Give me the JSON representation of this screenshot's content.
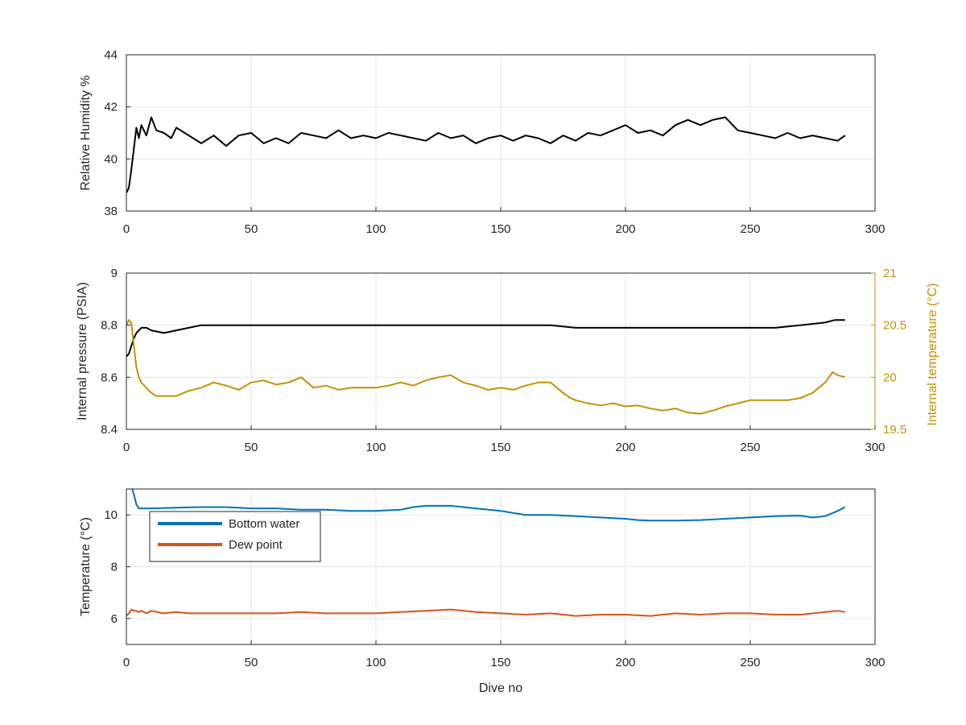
{
  "chart_data": [
    {
      "type": "line",
      "title": "",
      "xlabel": "",
      "ylabel": "Relative Humidity %",
      "xlim": [
        0,
        300
      ],
      "ylim": [
        38,
        44
      ],
      "xticks": [
        0,
        50,
        100,
        150,
        200,
        250,
        300
      ],
      "yticks": [
        38,
        40,
        42,
        44
      ],
      "grid": true,
      "series": [
        {
          "color": "#000000",
          "x": [
            0,
            1,
            2,
            3,
            4,
            5,
            6,
            8,
            10,
            12,
            15,
            18,
            20,
            25,
            30,
            35,
            40,
            45,
            50,
            55,
            60,
            65,
            70,
            75,
            80,
            85,
            90,
            95,
            100,
            105,
            110,
            115,
            120,
            125,
            130,
            135,
            140,
            145,
            150,
            155,
            160,
            165,
            170,
            175,
            180,
            185,
            190,
            195,
            200,
            205,
            210,
            215,
            220,
            225,
            230,
            235,
            240,
            245,
            250,
            255,
            260,
            265,
            270,
            275,
            280,
            285,
            288
          ],
          "values": [
            38.7,
            38.9,
            39.6,
            40.4,
            41.2,
            40.8,
            41.3,
            40.9,
            41.6,
            41.1,
            41.0,
            40.8,
            41.2,
            40.9,
            40.6,
            40.9,
            40.5,
            40.9,
            41.0,
            40.6,
            40.8,
            40.6,
            41.0,
            40.9,
            40.8,
            41.1,
            40.8,
            40.9,
            40.8,
            41.0,
            40.9,
            40.8,
            40.7,
            41.0,
            40.8,
            40.9,
            40.6,
            40.8,
            40.9,
            40.7,
            40.9,
            40.8,
            40.6,
            40.9,
            40.7,
            41.0,
            40.9,
            41.1,
            41.3,
            41.0,
            41.1,
            40.9,
            41.3,
            41.5,
            41.3,
            41.5,
            41.6,
            41.1,
            41.0,
            40.9,
            40.8,
            41.0,
            40.8,
            40.9,
            40.8,
            40.7,
            40.9
          ]
        }
      ]
    },
    {
      "type": "line",
      "title": "",
      "xlabel": "",
      "ylabel": "Internal pressure (PSIA)",
      "ylabel_right": "Internal temperature (°C)",
      "xlim": [
        0,
        300
      ],
      "ylim": [
        8.4,
        9.0
      ],
      "ylim_right": [
        19.5,
        21.0
      ],
      "xticks": [
        0,
        50,
        100,
        150,
        200,
        250,
        300
      ],
      "yticks": [
        8.4,
        8.6,
        8.8,
        9.0
      ],
      "ytick_labels": [
        "8.4",
        "8.6",
        "8.8",
        "9"
      ],
      "yticks_right": [
        19.5,
        20,
        20.5,
        21
      ],
      "grid": true,
      "series": [
        {
          "axis": "left",
          "color": "#000000",
          "x": [
            0,
            1,
            2,
            3,
            4,
            5,
            6,
            8,
            10,
            15,
            20,
            25,
            30,
            40,
            50,
            60,
            70,
            80,
            90,
            100,
            110,
            120,
            130,
            140,
            150,
            160,
            170,
            180,
            190,
            200,
            210,
            220,
            230,
            240,
            250,
            260,
            270,
            280,
            284,
            288
          ],
          "values": [
            8.68,
            8.69,
            8.72,
            8.75,
            8.77,
            8.78,
            8.79,
            8.79,
            8.78,
            8.77,
            8.78,
            8.79,
            8.8,
            8.8,
            8.8,
            8.8,
            8.8,
            8.8,
            8.8,
            8.8,
            8.8,
            8.8,
            8.8,
            8.8,
            8.8,
            8.8,
            8.8,
            8.79,
            8.79,
            8.79,
            8.79,
            8.79,
            8.79,
            8.79,
            8.79,
            8.79,
            8.8,
            8.81,
            8.82,
            8.82
          ]
        },
        {
          "axis": "right",
          "color": "#C59104",
          "x": [
            0,
            1,
            2,
            3,
            4,
            5,
            6,
            8,
            10,
            12,
            15,
            20,
            25,
            30,
            35,
            40,
            45,
            50,
            55,
            60,
            65,
            70,
            75,
            80,
            85,
            90,
            95,
            100,
            105,
            110,
            115,
            120,
            125,
            130,
            135,
            140,
            145,
            150,
            155,
            160,
            165,
            170,
            175,
            178,
            180,
            185,
            190,
            195,
            200,
            205,
            210,
            215,
            220,
            225,
            230,
            235,
            240,
            245,
            250,
            255,
            260,
            265,
            270,
            275,
            280,
            283,
            285,
            288
          ],
          "values": [
            20.5,
            20.55,
            20.52,
            20.3,
            20.1,
            20.0,
            19.95,
            19.9,
            19.85,
            19.82,
            19.82,
            19.82,
            19.87,
            19.9,
            19.95,
            19.92,
            19.88,
            19.95,
            19.97,
            19.93,
            19.95,
            20.0,
            19.9,
            19.92,
            19.88,
            19.9,
            19.9,
            19.9,
            19.92,
            19.95,
            19.92,
            19.97,
            20.0,
            20.02,
            19.95,
            19.92,
            19.88,
            19.9,
            19.88,
            19.92,
            19.95,
            19.95,
            19.85,
            19.8,
            19.78,
            19.75,
            19.73,
            19.75,
            19.72,
            19.73,
            19.7,
            19.68,
            19.7,
            19.66,
            19.65,
            19.68,
            19.72,
            19.75,
            19.78,
            19.78,
            19.78,
            19.78,
            19.8,
            19.85,
            19.95,
            20.05,
            20.02,
            20.0
          ]
        }
      ]
    },
    {
      "type": "line",
      "title": "",
      "xlabel": "Dive no",
      "ylabel": "Temperature (°C)",
      "xlim": [
        0,
        300
      ],
      "ylim": [
        5,
        11
      ],
      "xticks": [
        0,
        50,
        100,
        150,
        200,
        250,
        300
      ],
      "yticks": [
        6,
        8,
        10
      ],
      "grid": true,
      "legend_position": "top-left",
      "series": [
        {
          "name": "Bottom water",
          "color": "#0072BD",
          "x": [
            0,
            1,
            2,
            3,
            4,
            5,
            10,
            20,
            30,
            40,
            50,
            60,
            70,
            80,
            90,
            100,
            110,
            115,
            120,
            125,
            130,
            135,
            140,
            150,
            160,
            170,
            180,
            190,
            200,
            205,
            210,
            215,
            220,
            230,
            240,
            250,
            260,
            270,
            275,
            280,
            285,
            288
          ],
          "values": [
            11.5,
            11.3,
            11.1,
            10.8,
            10.4,
            10.25,
            10.25,
            10.28,
            10.3,
            10.3,
            10.25,
            10.25,
            10.2,
            10.2,
            10.15,
            10.15,
            10.2,
            10.3,
            10.35,
            10.35,
            10.35,
            10.3,
            10.25,
            10.15,
            10.0,
            10.0,
            9.95,
            9.9,
            9.85,
            9.8,
            9.78,
            9.78,
            9.78,
            9.8,
            9.85,
            9.9,
            9.95,
            9.97,
            9.9,
            9.95,
            10.15,
            10.3
          ]
        },
        {
          "name": "Dew point",
          "color": "#D95319",
          "x": [
            0,
            1,
            2,
            3,
            4,
            5,
            6,
            8,
            10,
            15,
            20,
            25,
            30,
            40,
            50,
            60,
            70,
            80,
            90,
            100,
            110,
            120,
            130,
            140,
            150,
            160,
            170,
            180,
            190,
            200,
            210,
            220,
            230,
            240,
            250,
            260,
            270,
            280,
            285,
            288
          ],
          "values": [
            6.1,
            6.2,
            6.35,
            6.3,
            6.3,
            6.25,
            6.3,
            6.2,
            6.3,
            6.2,
            6.25,
            6.2,
            6.2,
            6.2,
            6.2,
            6.2,
            6.25,
            6.2,
            6.2,
            6.2,
            6.25,
            6.3,
            6.35,
            6.25,
            6.2,
            6.15,
            6.2,
            6.1,
            6.15,
            6.15,
            6.1,
            6.2,
            6.15,
            6.2,
            6.2,
            6.15,
            6.15,
            6.25,
            6.3,
            6.25
          ]
        }
      ]
    }
  ]
}
